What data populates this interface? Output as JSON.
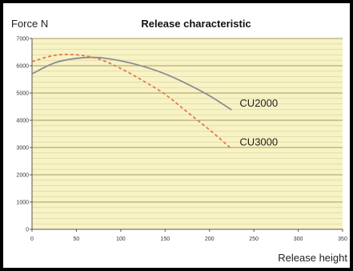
{
  "chart_data": {
    "type": "line",
    "title": "Release characteristic",
    "ylabel": "Force N",
    "xlabel": "Release height",
    "xlim": [
      0,
      350
    ],
    "ylim": [
      0,
      7000
    ],
    "x_ticks": [
      0,
      50,
      100,
      150,
      200,
      250,
      300,
      350
    ],
    "y_ticks": [
      0,
      1000,
      2000,
      3000,
      4000,
      5000,
      6000,
      7000
    ],
    "grid": true,
    "colors": {
      "plot_bg": "#f8f3c4",
      "frame": "#000000",
      "grid_minor": "#d8cfa0",
      "grid_major": "#a89a60"
    },
    "series": [
      {
        "name": "CU2000",
        "color": "#8c8c96",
        "dash": "solid",
        "x": [
          0,
          25,
          50,
          75,
          100,
          125,
          150,
          175,
          200,
          225
        ],
        "y": [
          5700,
          6100,
          6270,
          6300,
          6180,
          5980,
          5700,
          5330,
          4900,
          4380
        ]
      },
      {
        "name": "CU3000",
        "color": "#e07a50",
        "dash": "dashed",
        "x": [
          0,
          25,
          50,
          75,
          100,
          125,
          150,
          175,
          200,
          225
        ],
        "y": [
          6150,
          6380,
          6400,
          6250,
          5900,
          5450,
          4950,
          4300,
          3650,
          2950
        ]
      }
    ]
  }
}
